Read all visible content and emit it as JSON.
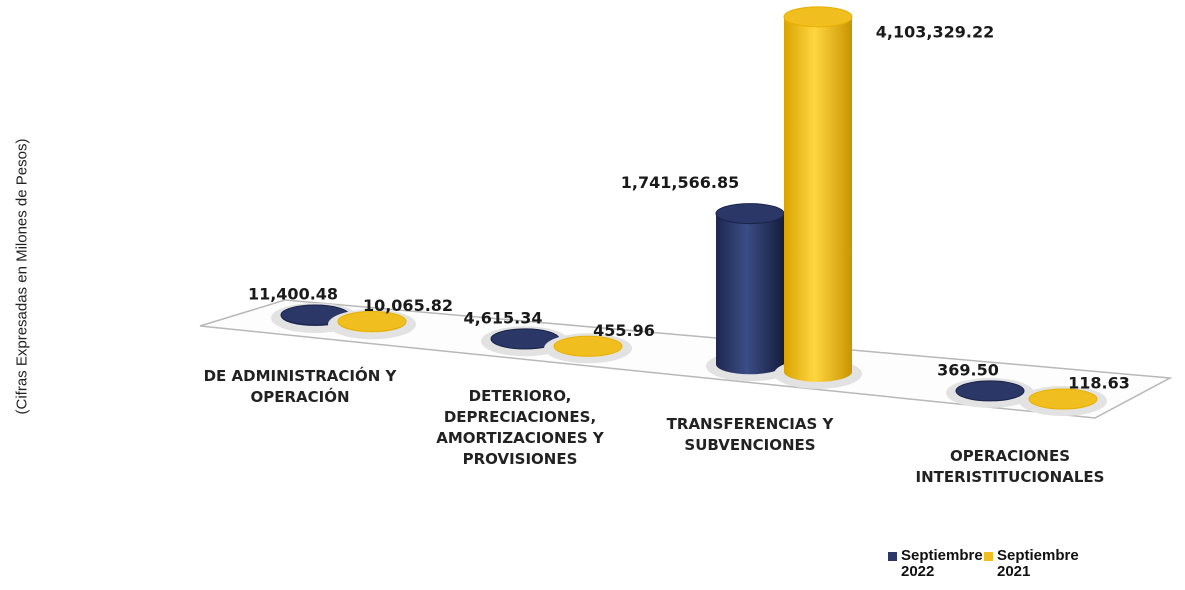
{
  "chart_data": {
    "type": "bar3d",
    "y_axis_label": "(Cifras Expresadas en Milones de Pesos)",
    "categories": [
      "DE ADMINISTRACIÓN Y OPERACIÓN",
      "DETERIORO, DEPRECIACIONES, AMORTIZACIONES Y PROVISIONES",
      "TRANSFERENCIAS Y SUBVENCIONES",
      "OPERACIONES INTERISTITUCIONALES"
    ],
    "series": [
      {
        "name": "Septiembre 2022",
        "color": "#2b3766",
        "values": [
          11400.48,
          4615.34,
          1741566.85,
          369.5
        ],
        "value_labels": [
          "11,400.48",
          "4,615.34",
          "1,741,566.85",
          "369.50"
        ]
      },
      {
        "name": "Septiembre 2021",
        "color": "#f0bf1f",
        "values": [
          10065.82,
          455.96,
          4103329.22,
          118.63
        ],
        "value_labels": [
          "10,065.82",
          "455.96",
          "4,103,329.22",
          "118.63"
        ]
      }
    ],
    "legend": "bottom-right"
  }
}
